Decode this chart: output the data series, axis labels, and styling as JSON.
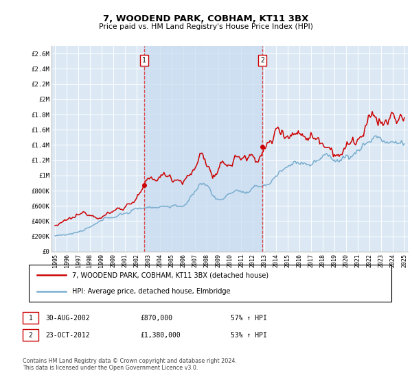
{
  "title": "7, WOODEND PARK, COBHAM, KT11 3BX",
  "subtitle": "Price paid vs. HM Land Registry's House Price Index (HPI)",
  "plot_bg_color": "#dce9f5",
  "shade_color": "#c8dcf0",
  "ylim": [
    0,
    2700000
  ],
  "yticks": [
    0,
    200000,
    400000,
    600000,
    800000,
    1000000,
    1200000,
    1400000,
    1600000,
    1800000,
    2000000,
    2200000,
    2400000,
    2600000
  ],
  "ytick_labels": [
    "£0",
    "£200K",
    "£400K",
    "£600K",
    "£800K",
    "£1M",
    "£1.2M",
    "£1.4M",
    "£1.6M",
    "£1.8M",
    "£2M",
    "£2.2M",
    "£2.4M",
    "£2.6M"
  ],
  "sale1_date": 2002.67,
  "sale1_price": 870000,
  "sale2_date": 2012.81,
  "sale2_price": 1380000,
  "legend_line1": "7, WOODEND PARK, COBHAM, KT11 3BX (detached house)",
  "legend_line2": "HPI: Average price, detached house, Elmbridge",
  "table_row1": [
    "1",
    "30-AUG-2002",
    "£870,000",
    "57% ↑ HPI"
  ],
  "table_row2": [
    "2",
    "23-OCT-2012",
    "£1,380,000",
    "53% ↑ HPI"
  ],
  "footer": "Contains HM Land Registry data © Crown copyright and database right 2024.\nThis data is licensed under the Open Government Licence v3.0.",
  "red_color": "#cc0000",
  "blue_color": "#7aadcf",
  "vline_color": "#dd4444"
}
